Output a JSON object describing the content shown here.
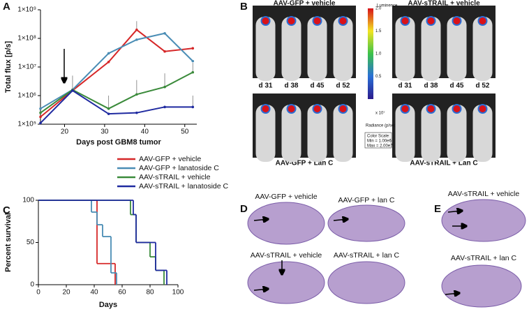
{
  "chart_data": [
    {
      "type": "line",
      "panel": "A",
      "ylabel": "Total flux [p/s]",
      "xlabel": "Days post GBM8 tumor",
      "log_y": true,
      "xlim": [
        14,
        53
      ],
      "xticks": [
        20,
        30,
        40,
        50
      ],
      "ylim": [
        100000,
        1000000000
      ],
      "yticks": [
        {
          "value": 100000,
          "label": "1×10⁵"
        },
        {
          "value": 1000000,
          "label": "1×10⁶"
        },
        {
          "value": 10000000,
          "label": "1×10⁷"
        },
        {
          "value": 100000000,
          "label": "1×10⁸"
        },
        {
          "value": 1000000000,
          "label": "1×10⁹"
        }
      ],
      "x": [
        14,
        22,
        31,
        38,
        45,
        52
      ],
      "series": [
        {
          "name": "AAV-GFP + vehicle",
          "color": "#d62728",
          "values": [
            180000,
            1500000,
            15000000,
            200000000,
            35000000,
            45000000
          ],
          "errors": [
            null,
            null,
            null,
            200000000,
            null,
            null
          ]
        },
        {
          "name": "AAV-GFP + lanatoside C",
          "color": "#4a8db5",
          "values": [
            350000,
            1600000,
            30000000,
            90000000,
            150000000,
            16000000
          ],
          "errors": [
            null,
            null,
            null,
            null,
            null,
            null
          ]
        },
        {
          "name": "AAV-sTRAIL + vehicle",
          "color": "#3a8a3a",
          "values": [
            250000,
            1600000,
            350000,
            1100000,
            2000000,
            6500000
          ],
          "errors": [
            null,
            null,
            650000,
            2400000,
            4000000,
            7500000
          ]
        },
        {
          "name": "AAV-sTRAIL + lanatoside C",
          "color": "#1f2aa0",
          "values": [
            110000,
            1500000,
            230000,
            250000,
            400000,
            400000
          ],
          "errors": [
            null,
            3500000,
            null,
            null,
            null,
            600000
          ]
        }
      ]
    },
    {
      "type": "step",
      "panel": "C",
      "ylabel": "Percent survival",
      "xlabel": "Days",
      "xlim": [
        0,
        100
      ],
      "xticks": [
        0,
        20,
        40,
        60,
        80,
        100
      ],
      "ylim": [
        0,
        100
      ],
      "yticks": [
        0,
        50,
        100
      ],
      "series": [
        {
          "color": "#d62728",
          "x": [
            0,
            42,
            55
          ],
          "values": [
            100,
            25,
            0
          ]
        },
        {
          "color": "#4a8db5",
          "x": [
            0,
            38,
            42,
            46,
            52,
            56
          ],
          "values": [
            100,
            86,
            71,
            57,
            14,
            0
          ]
        },
        {
          "color": "#3a8a3a",
          "x": [
            0,
            66,
            70,
            80,
            84,
            90
          ],
          "values": [
            100,
            83,
            50,
            33,
            17,
            0
          ]
        },
        {
          "color": "#1f2aa0",
          "x": [
            0,
            68,
            70,
            78,
            84,
            92
          ],
          "values": [
            100,
            83,
            50,
            50,
            17,
            0
          ]
        }
      ]
    }
  ],
  "panel_b": {
    "letter": "B",
    "top_left": "AAV-GFP + vehicle",
    "top_right": "AAV-sTRAIL + vehicle",
    "bottom_left": "AAV-GFP + Lan C",
    "bottom_right": "AAV-sTRAIL + Lan C",
    "days_left": [
      "d 31",
      "d 38",
      "d 45",
      "d 52"
    ],
    "days_right": [
      "d 31",
      "d 38",
      "d 45",
      "d 52"
    ],
    "colorbar": {
      "title": "Luminence",
      "ticks": [
        "2.0",
        "1.5",
        "1.0",
        "0.5"
      ],
      "exponent": "x 10⁷",
      "unit": "Radiance (p/sec/cm²/sr)",
      "scale": [
        "Color Scale:",
        "Min = 1.00e6",
        "Max = 2.00e7"
      ]
    }
  },
  "panel_d": {
    "letter": "D",
    "labels": [
      "AAV-GFP + vehicle",
      "AAV-GFP + lan C",
      "AAV-sTRAIL + vehicle",
      "AAV-sTRAIL + lan C"
    ]
  },
  "panel_e": {
    "letter": "E",
    "labels": [
      "AAV-sTRAIL + vehicle",
      "AAV-sTRAIL + lan C"
    ]
  },
  "letters": {
    "a": "A",
    "c": "C"
  }
}
